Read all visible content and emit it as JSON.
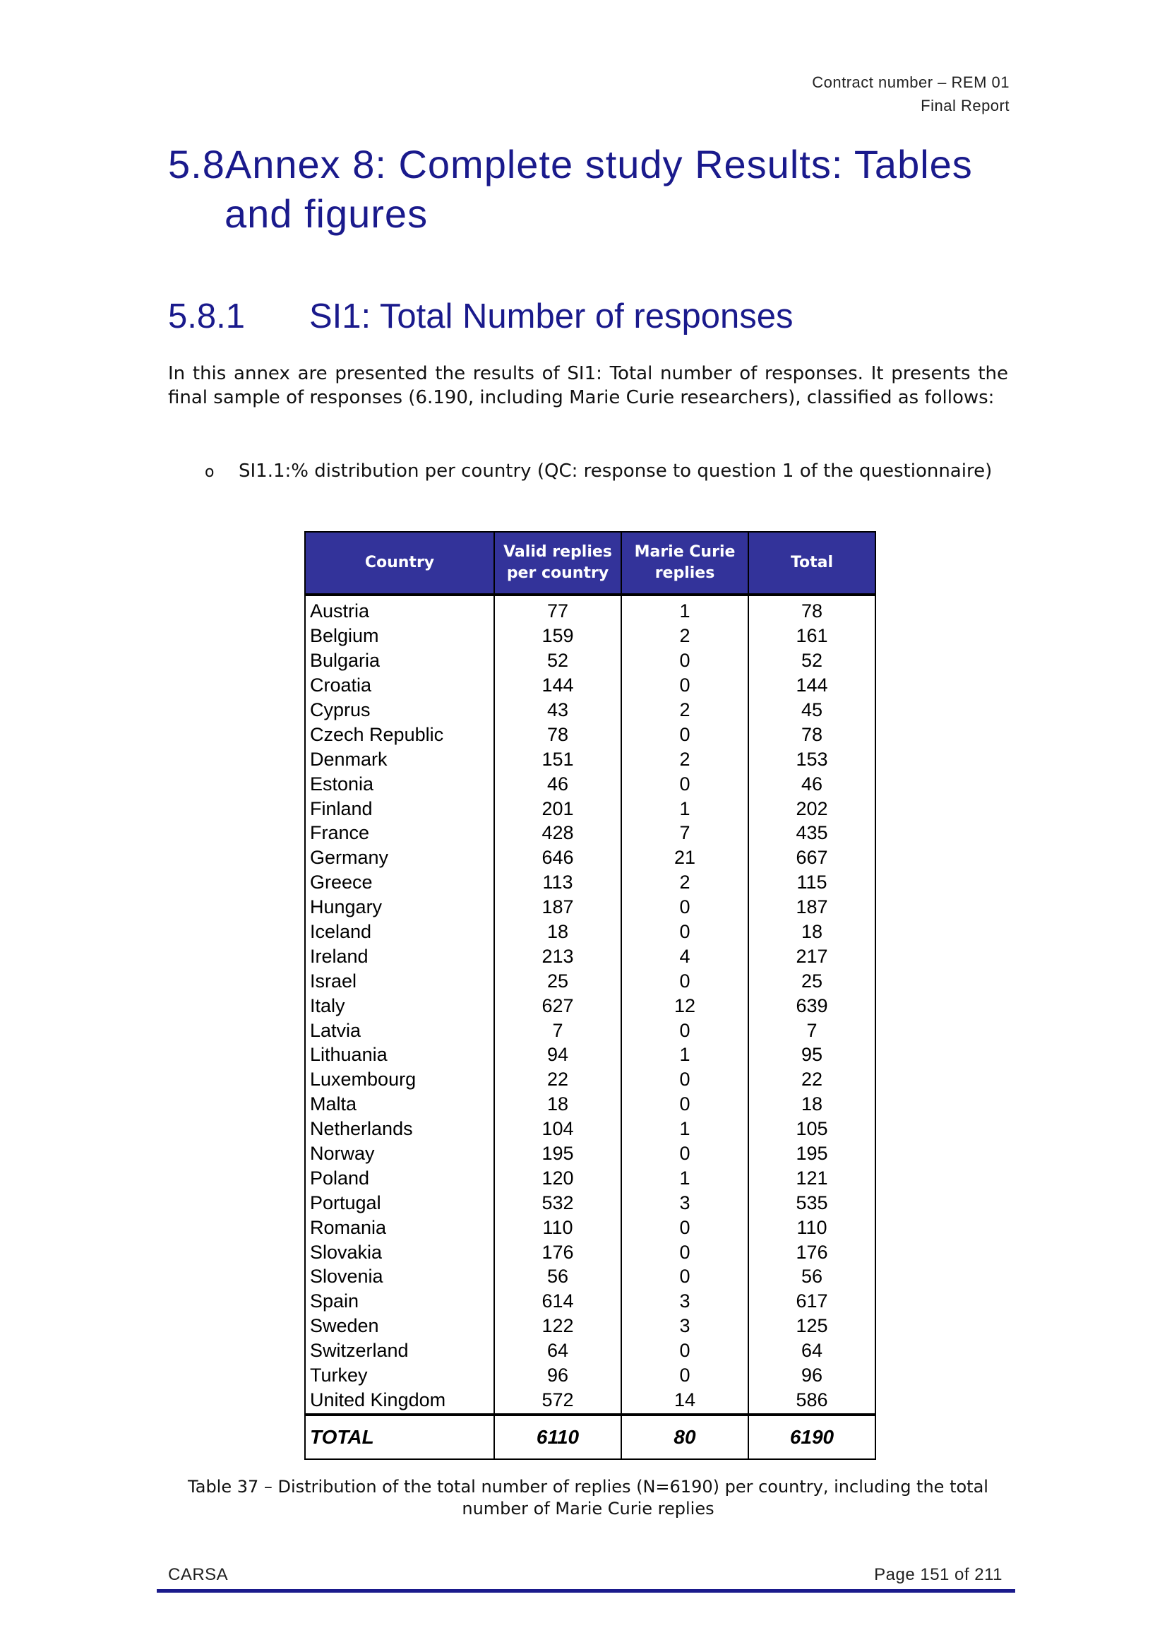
{
  "header": {
    "line1": "Contract number – REM 01",
    "line2": "Final Report"
  },
  "heading1": {
    "number": "5.8",
    "text_line1": "Annex 8: Complete study Results: Tables",
    "text_line2": "and figures"
  },
  "heading2": {
    "number": "5.8.1",
    "text": "SI1: Total Number of responses"
  },
  "intro": "In this annex are presented the results of SI1: Total number of responses. It presents the final sample of responses (6.190, including Marie Curie researchers), classified as follows:",
  "bullet": {
    "mark": "o",
    "text": "SI1.1:% distribution per country (QC: response to question 1 of the questionnaire)"
  },
  "table": {
    "headers": [
      "Country",
      "Valid replies per country",
      "Marie Curie replies",
      "Total"
    ],
    "rows": [
      [
        "Austria",
        "77",
        "1",
        "78"
      ],
      [
        "Belgium",
        "159",
        "2",
        "161"
      ],
      [
        "Bulgaria",
        "52",
        "0",
        "52"
      ],
      [
        "Croatia",
        "144",
        "0",
        "144"
      ],
      [
        "Cyprus",
        "43",
        "2",
        "45"
      ],
      [
        "Czech Republic",
        "78",
        "0",
        "78"
      ],
      [
        "Denmark",
        "151",
        "2",
        "153"
      ],
      [
        "Estonia",
        "46",
        "0",
        "46"
      ],
      [
        "Finland",
        "201",
        "1",
        "202"
      ],
      [
        "France",
        "428",
        "7",
        "435"
      ],
      [
        "Germany",
        "646",
        "21",
        "667"
      ],
      [
        "Greece",
        "113",
        "2",
        "115"
      ],
      [
        "Hungary",
        "187",
        "0",
        "187"
      ],
      [
        "Iceland",
        "18",
        "0",
        "18"
      ],
      [
        "Ireland",
        "213",
        "4",
        "217"
      ],
      [
        "Israel",
        "25",
        "0",
        "25"
      ],
      [
        "Italy",
        "627",
        "12",
        "639"
      ],
      [
        "Latvia",
        "7",
        "0",
        "7"
      ],
      [
        "Lithuania",
        "94",
        "1",
        "95"
      ],
      [
        "Luxembourg",
        "22",
        "0",
        "22"
      ],
      [
        "Malta",
        "18",
        "0",
        "18"
      ],
      [
        "Netherlands",
        "104",
        "1",
        "105"
      ],
      [
        "Norway",
        "195",
        "0",
        "195"
      ],
      [
        "Poland",
        "120",
        "1",
        "121"
      ],
      [
        "Portugal",
        "532",
        "3",
        "535"
      ],
      [
        "Romania",
        "110",
        "0",
        "110"
      ],
      [
        "Slovakia",
        "176",
        "0",
        "176"
      ],
      [
        "Slovenia",
        "56",
        "0",
        "56"
      ],
      [
        "Spain",
        "614",
        "3",
        "617"
      ],
      [
        "Sweden",
        "122",
        "3",
        "125"
      ],
      [
        "Switzerland",
        "64",
        "0",
        "64"
      ],
      [
        "Turkey",
        "96",
        "0",
        "96"
      ],
      [
        "United Kingdom",
        "572",
        "14",
        "586"
      ]
    ],
    "total": [
      "TOTAL",
      "6110",
      "80",
      "6190"
    ]
  },
  "caption": "Table 37 – Distribution of the total number of replies (N=6190) per country, including the total number of Marie Curie replies",
  "footer": {
    "left": "CARSA",
    "right": "Page 151 of 211"
  },
  "colors": {
    "heading": "#1a1a8c",
    "table_header_bg": "#33339a",
    "footer_rule": "#1a1a8c"
  }
}
